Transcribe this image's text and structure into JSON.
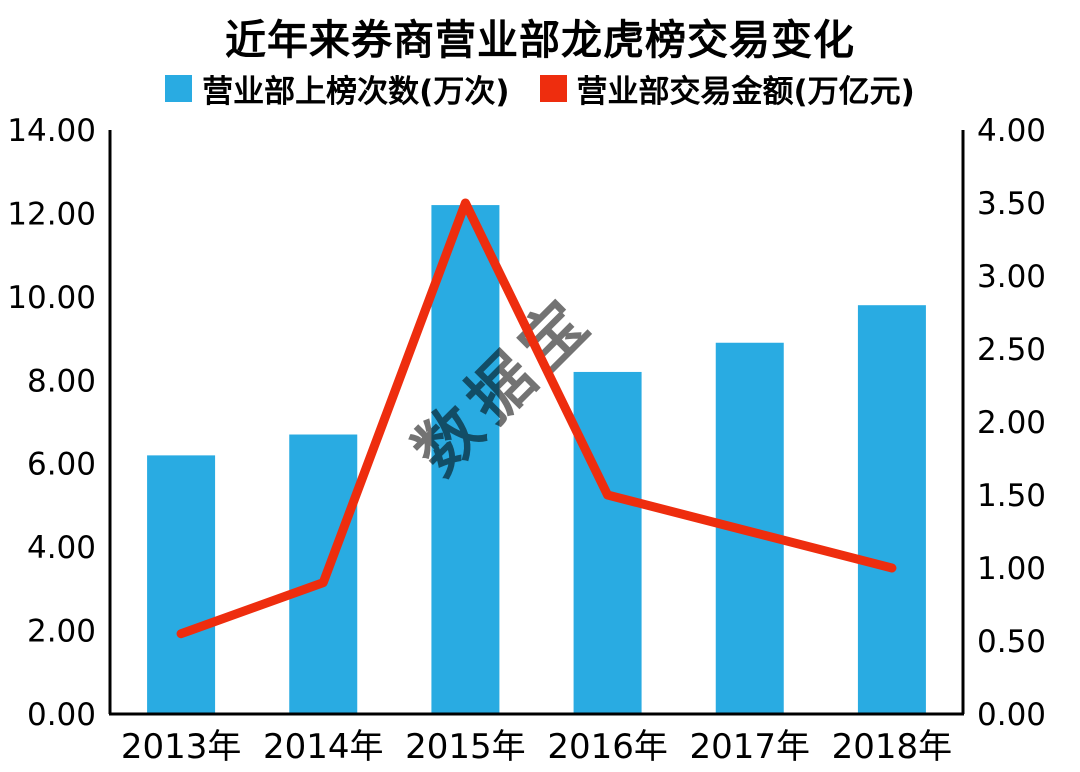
{
  "title": "近年来券商营业部龙虎榜交易变化",
  "watermark": "数据宝",
  "legend": [
    {
      "label": "营业部上榜次数(万次)",
      "color": "#29ABE2"
    },
    {
      "label": "营业部交易金额(万亿元)",
      "color": "#EE2D0E"
    }
  ],
  "chart_data": {
    "type": "bar",
    "subtype": "bar+line combo, dual y-axes",
    "title": "近年来券商营业部龙虎榜交易变化",
    "categories": [
      "2013年",
      "2014年",
      "2015年",
      "2016年",
      "2017年",
      "2018年"
    ],
    "series": [
      {
        "name": "营业部上榜次数(万次)",
        "type": "bar",
        "axis": "left",
        "color": "#29ABE2",
        "values": [
          6.2,
          6.7,
          12.2,
          8.2,
          8.9,
          9.8
        ]
      },
      {
        "name": "营业部交易金额(万亿元)",
        "type": "line",
        "axis": "right",
        "color": "#EE2D0E",
        "values": [
          0.55,
          0.9,
          3.5,
          1.5,
          1.25,
          1.0
        ]
      }
    ],
    "left_axis": {
      "min": 0,
      "max": 14,
      "step": 2,
      "tick_labels": [
        "0.00",
        "2.00",
        "4.00",
        "6.00",
        "8.00",
        "10.00",
        "12.00",
        "14.00"
      ]
    },
    "right_axis": {
      "min": 0,
      "max": 4,
      "step": 0.5,
      "tick_labels": [
        "0.00",
        "0.50",
        "1.00",
        "1.50",
        "2.00",
        "2.50",
        "3.00",
        "3.50",
        "4.00"
      ]
    },
    "grid": false,
    "legend_position": "top"
  }
}
